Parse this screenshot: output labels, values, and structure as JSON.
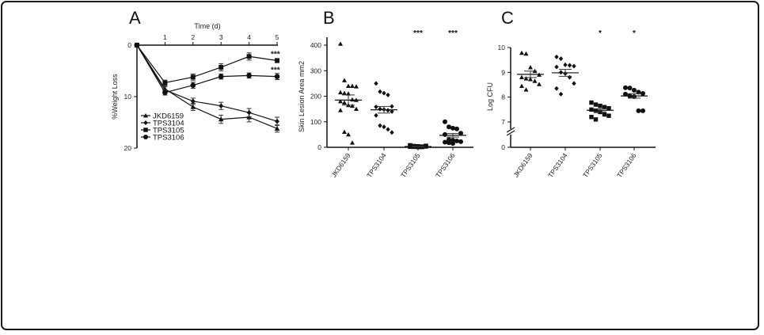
{
  "figure": {
    "panels": [
      "A",
      "B",
      "C"
    ]
  },
  "chart_data": [
    {
      "panel": "A",
      "type": "line",
      "title": "",
      "xlabel": "Time (d)",
      "ylabel": "%Weight Loss",
      "x": [
        0,
        1,
        2,
        3,
        4,
        5
      ],
      "x_ticks": [
        "0",
        "1",
        "2",
        "3",
        "4",
        "5"
      ],
      "xlim": [
        0,
        5
      ],
      "ylim": [
        0,
        20
      ],
      "y_inverted": true,
      "y_ticks": [
        "0",
        "10",
        "20"
      ],
      "x_axis_position": "top",
      "legend_position": "bottom-left",
      "series": [
        {
          "name": "JKD6159",
          "marker": "triangle",
          "values": [
            0,
            8.5,
            12.0,
            14.4,
            14.0,
            16.2
          ],
          "errors": [
            0,
            0.6,
            0.7,
            0.8,
            0.9,
            0.7
          ]
        },
        {
          "name": "TPS3104",
          "marker": "diamond",
          "values": [
            0,
            8.7,
            10.9,
            11.8,
            13.1,
            14.8
          ],
          "errors": [
            0,
            0.6,
            0.6,
            0.7,
            0.8,
            0.8
          ]
        },
        {
          "name": "TPS3105",
          "marker": "square",
          "values": [
            0,
            7.3,
            6.2,
            4.3,
            2.2,
            3.0
          ],
          "errors": [
            0,
            0.5,
            0.6,
            0.7,
            0.7,
            0.4
          ]
        },
        {
          "name": "TPS3106",
          "marker": "circle",
          "values": [
            0,
            9.2,
            7.8,
            6.1,
            5.9,
            6.1
          ],
          "errors": [
            0,
            0.5,
            0.6,
            0.5,
            0.5,
            0.6
          ]
        }
      ],
      "annotations": [
        {
          "series": "TPS3105",
          "x": 5,
          "text": "***"
        },
        {
          "series": "TPS3106",
          "x": 5,
          "text": "***"
        }
      ]
    },
    {
      "panel": "B",
      "type": "scatter",
      "title": "",
      "xlabel": "",
      "ylabel": "Skin Lesion Area mm2",
      "categories": [
        "JKD6159",
        "TPS3104",
        "TPS3105",
        "TPS3106"
      ],
      "ylim": [
        0,
        400
      ],
      "y_ticks": [
        "0",
        "100",
        "200",
        "300",
        "400"
      ],
      "groups": [
        {
          "name": "JKD6159",
          "marker": "triangle",
          "mean": 185,
          "sem": 20,
          "points": [
            405,
            262,
            240,
            240,
            238,
            215,
            212,
            210,
            187,
            185,
            180,
            175,
            165,
            162,
            150,
            145,
            60,
            50,
            18
          ]
        },
        {
          "name": "TPS3104",
          "marker": "diamond",
          "mean": 147,
          "sem": 13,
          "points": [
            250,
            218,
            212,
            205,
            160,
            158,
            150,
            148,
            145,
            140,
            125,
            85,
            80,
            70,
            58
          ]
        },
        {
          "name": "TPS3105",
          "marker": "square",
          "mean": 3,
          "sem": 1,
          "points": [
            8,
            5,
            4,
            3,
            3,
            2,
            2,
            1,
            1,
            6,
            7,
            2
          ]
        },
        {
          "name": "TPS3106",
          "marker": "circle",
          "mean": 47,
          "sem": 7,
          "points": [
            100,
            80,
            75,
            72,
            55,
            50,
            30,
            28,
            25,
            22,
            20,
            18,
            15
          ]
        }
      ],
      "annotations": [
        {
          "category": "TPS3105",
          "text": "***"
        },
        {
          "category": "TPS3106",
          "text": "***"
        }
      ]
    },
    {
      "panel": "C",
      "type": "scatter",
      "title": "",
      "xlabel": "",
      "ylabel": "Log CFU",
      "categories": [
        "JKD6159",
        "TPS3104",
        "TPS3105",
        "TPS3106"
      ],
      "ylim": [
        0,
        10
      ],
      "axis_break": [
        0,
        7
      ],
      "y_ticks": [
        "0",
        "7",
        "8",
        "9",
        "10"
      ],
      "groups": [
        {
          "name": "JKD6159",
          "marker": "triangle",
          "mean": 8.92,
          "sem": 0.13,
          "points": [
            9.78,
            9.75,
            9.2,
            9.05,
            8.9,
            8.8,
            8.75,
            8.72,
            8.65,
            8.52,
            8.45,
            8.3
          ]
        },
        {
          "name": "TPS3104",
          "marker": "diamond",
          "mean": 8.98,
          "sem": 0.14,
          "points": [
            9.62,
            9.55,
            9.3,
            9.28,
            9.25,
            9.22,
            9.0,
            8.95,
            8.8,
            8.55,
            8.35,
            8.12
          ]
        },
        {
          "name": "TPS3105",
          "marker": "square",
          "mean": 7.47,
          "sem": 0.06,
          "points": [
            7.78,
            7.7,
            7.65,
            7.6,
            7.55,
            7.5,
            7.45,
            7.4,
            7.3,
            7.25,
            7.2,
            7.1
          ]
        },
        {
          "name": "TPS3106",
          "marker": "circle",
          "mean": 8.05,
          "sem": 0.09,
          "points": [
            8.38,
            8.37,
            8.28,
            8.2,
            8.15,
            8.12,
            8.05,
            8.02,
            7.45,
            7.45
          ]
        }
      ],
      "annotations": [
        {
          "category": "TPS3105",
          "text": "*"
        },
        {
          "category": "TPS3106",
          "text": "*"
        }
      ]
    }
  ]
}
